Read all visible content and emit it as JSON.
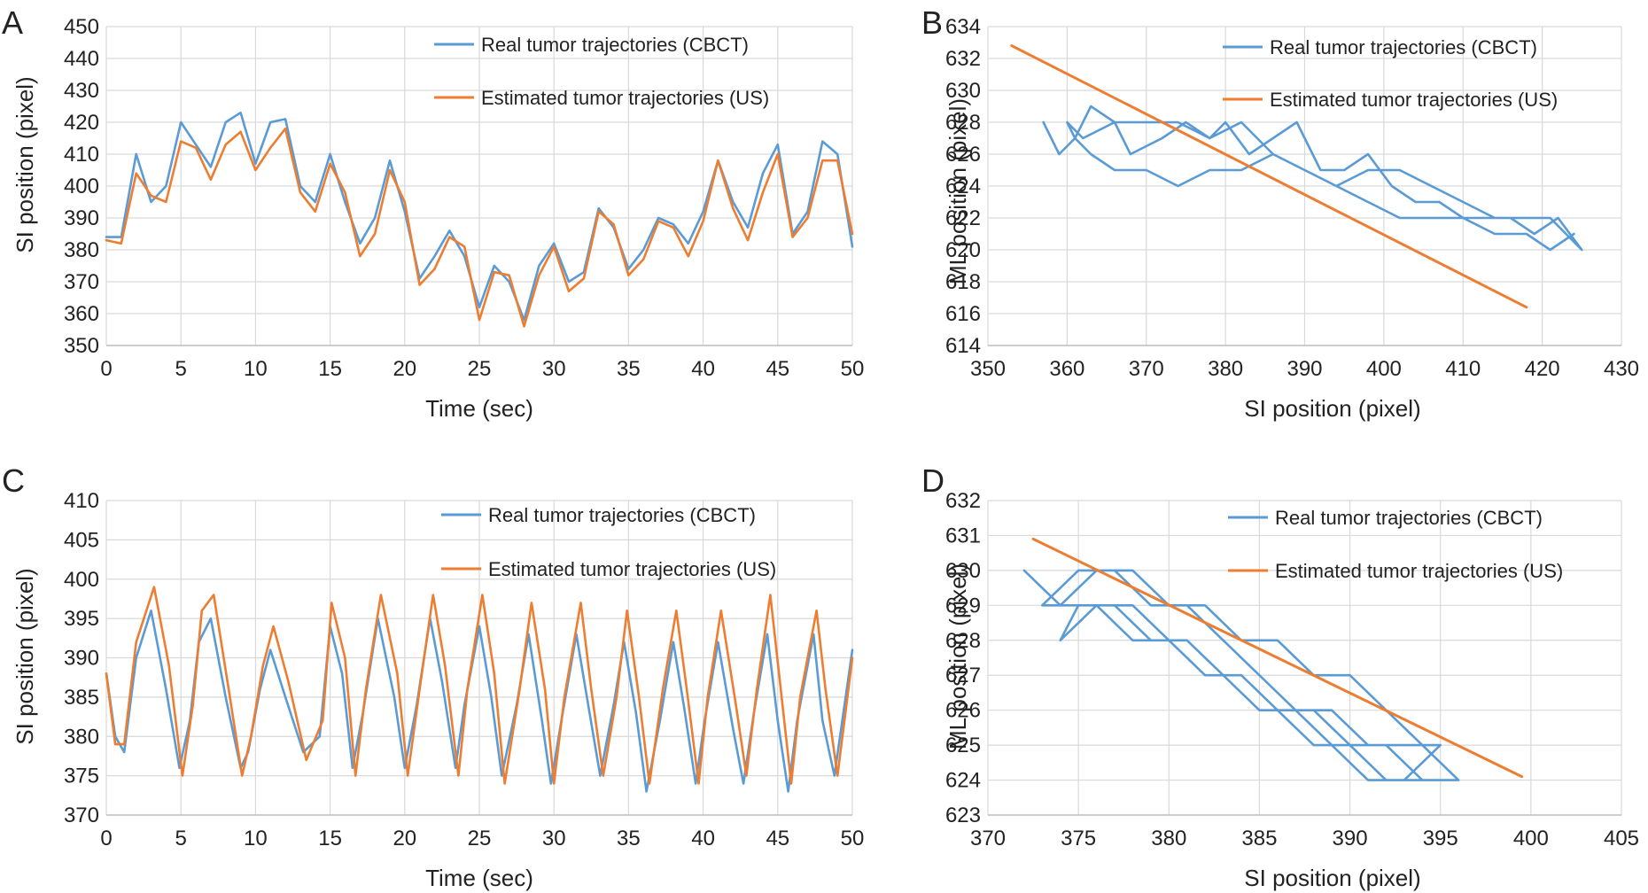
{
  "colors": {
    "real": "#5b9bd5",
    "estimated": "#ed7d31",
    "grid": "#d9d9d9"
  },
  "chart_data": [
    {
      "panel": "A",
      "type": "line",
      "xlabel": "Time (sec)",
      "ylabel": "SI position (pixel)",
      "xlim": [
        0,
        50
      ],
      "ylim": [
        350,
        450
      ],
      "xticks": [
        "0",
        "5",
        "10",
        "15",
        "20",
        "25",
        "30",
        "35",
        "40",
        "45",
        "50"
      ],
      "yticks": [
        "350",
        "360",
        "370",
        "380",
        "390",
        "400",
        "410",
        "420",
        "430",
        "440",
        "450"
      ],
      "grid": true,
      "legend_position": "top-right",
      "series": [
        {
          "name": "Real tumor trajectories (CBCT)",
          "color": "#5b9bd5",
          "x": [
            0,
            1,
            2,
            3,
            4,
            5,
            6,
            7,
            8,
            9,
            10,
            11,
            12,
            13,
            14,
            15,
            16,
            17,
            18,
            19,
            20,
            21,
            22,
            23,
            24,
            25,
            26,
            27,
            28,
            29,
            30,
            31,
            32,
            33,
            34,
            35,
            36,
            37,
            38,
            39,
            40,
            41,
            42,
            43,
            44,
            45,
            46,
            47,
            48,
            49,
            50
          ],
          "y": [
            384,
            384,
            410,
            395,
            400,
            420,
            413,
            406,
            420,
            423,
            407,
            420,
            421,
            400,
            395,
            410,
            395,
            382,
            390,
            408,
            392,
            371,
            378,
            386,
            378,
            362,
            375,
            370,
            358,
            375,
            382,
            370,
            373,
            393,
            387,
            374,
            380,
            390,
            388,
            382,
            392,
            408,
            395,
            387,
            404,
            413,
            385,
            392,
            414,
            410,
            381
          ]
        },
        {
          "name": "Estimated tumor trajectories (US)",
          "color": "#ed7d31",
          "x": [
            0,
            1,
            2,
            3,
            4,
            5,
            6,
            7,
            8,
            9,
            10,
            11,
            12,
            13,
            14,
            15,
            16,
            17,
            18,
            19,
            20,
            21,
            22,
            23,
            24,
            25,
            26,
            27,
            28,
            29,
            30,
            31,
            32,
            33,
            34,
            35,
            36,
            37,
            38,
            39,
            40,
            41,
            42,
            43,
            44,
            45,
            46,
            47,
            48,
            49,
            50
          ],
          "y": [
            383,
            382,
            404,
            397,
            395,
            414,
            412,
            402,
            413,
            417,
            405,
            412,
            418,
            398,
            392,
            407,
            398,
            378,
            385,
            405,
            395,
            369,
            374,
            384,
            381,
            358,
            373,
            372,
            356,
            372,
            381,
            367,
            371,
            392,
            388,
            372,
            377,
            389,
            387,
            378,
            389,
            408,
            393,
            383,
            398,
            410,
            384,
            390,
            408,
            408,
            385
          ]
        }
      ]
    },
    {
      "panel": "B",
      "type": "scatter",
      "xlabel": "SI position (pixel)",
      "ylabel": "ML position (pixel)",
      "xlim": [
        350,
        430
      ],
      "ylim": [
        614,
        634
      ],
      "xticks": [
        "350",
        "360",
        "370",
        "380",
        "390",
        "400",
        "410",
        "420",
        "430"
      ],
      "yticks": [
        "614",
        "616",
        "618",
        "620",
        "622",
        "624",
        "626",
        "628",
        "630",
        "632",
        "634"
      ],
      "grid": true,
      "legend_position": "top-right",
      "series": [
        {
          "name": "Real tumor trajectories (CBCT)",
          "color": "#5b9bd5",
          "x": [
            357,
            359,
            361,
            363,
            366,
            368,
            372,
            375,
            378,
            380,
            383,
            386,
            389,
            392,
            395,
            398,
            401,
            404,
            407,
            410,
            413,
            416,
            419,
            422,
            425,
            423,
            421,
            418,
            414,
            410,
            406,
            402,
            398,
            394,
            390,
            386,
            382,
            378,
            374,
            370,
            366,
            363,
            361,
            360,
            362,
            366,
            370,
            374,
            378,
            382,
            386,
            390,
            394,
            398,
            402,
            406,
            410,
            414,
            418,
            421,
            424
          ],
          "y": [
            628,
            626,
            627,
            629,
            628,
            626,
            627,
            628,
            627,
            628,
            626,
            627,
            628,
            625,
            625,
            626,
            624,
            623,
            623,
            622,
            622,
            622,
            621,
            622,
            620,
            621,
            622,
            622,
            622,
            623,
            624,
            625,
            625,
            624,
            625,
            626,
            625,
            625,
            624,
            625,
            625,
            626,
            627,
            628,
            627,
            628,
            628,
            628,
            627,
            628,
            626,
            625,
            624,
            623,
            622,
            622,
            622,
            621,
            621,
            620,
            621
          ]
        },
        {
          "name": "Estimated tumor trajectories (US)",
          "color": "#ed7d31",
          "mode": "line",
          "x": [
            353,
            418
          ],
          "y": [
            632.8,
            616.4
          ]
        }
      ]
    },
    {
      "panel": "C",
      "type": "line",
      "xlabel": "Time (sec)",
      "ylabel": "SI position (pixel)",
      "xlim": [
        0,
        50
      ],
      "ylim": [
        370,
        410
      ],
      "xticks": [
        "0",
        "5",
        "10",
        "15",
        "20",
        "25",
        "30",
        "35",
        "40",
        "45",
        "50"
      ],
      "yticks": [
        "370",
        "375",
        "380",
        "385",
        "390",
        "395",
        "400",
        "405",
        "410"
      ],
      "grid": true,
      "legend_position": "top-right",
      "series": [
        {
          "name": "Real tumor trajectories (CBCT)",
          "color": "#5b9bd5",
          "x": [
            0,
            0.6,
            1.2,
            2.0,
            3.0,
            4.0,
            4.9,
            5.6,
            6.2,
            7.0,
            8.0,
            9.0,
            9.5,
            10.3,
            11.0,
            12.0,
            13.2,
            14.3,
            15.0,
            15.8,
            16.5,
            17.2,
            18.2,
            19.3,
            20.0,
            20.8,
            21.7,
            22.5,
            23.4,
            24.0,
            25.0,
            25.8,
            26.5,
            27.5,
            28.3,
            29.2,
            29.8,
            30.5,
            31.5,
            32.3,
            33.1,
            34.0,
            34.7,
            35.5,
            36.2,
            37.1,
            38.0,
            38.7,
            39.5,
            40.1,
            41.0,
            42.0,
            42.7,
            43.4,
            44.3,
            45.0,
            45.7,
            46.3,
            47.4,
            48.0,
            48.8,
            49.4,
            50.0
          ],
          "y": [
            388,
            380,
            378,
            390,
            396,
            386,
            376,
            382,
            392,
            395,
            385,
            376,
            378,
            386,
            391,
            385,
            378,
            380,
            394,
            388,
            376,
            383,
            395,
            385,
            376,
            384,
            395,
            387,
            376,
            384,
            394,
            385,
            375,
            384,
            393,
            382,
            374,
            382,
            393,
            384,
            375,
            384,
            392,
            383,
            373,
            382,
            392,
            384,
            374,
            382,
            392,
            381,
            374,
            383,
            393,
            382,
            373,
            382,
            393,
            382,
            375,
            383,
            391
          ]
        },
        {
          "name": "Estimated tumor trajectories (US)",
          "color": "#ed7d31",
          "x": [
            0,
            0.6,
            1.2,
            2.0,
            3.2,
            4.2,
            5.1,
            5.8,
            6.4,
            7.2,
            8.2,
            9.1,
            9.7,
            10.5,
            11.2,
            12.2,
            13.4,
            14.5,
            15.1,
            16.0,
            16.7,
            17.4,
            18.4,
            19.5,
            20.2,
            21.0,
            21.9,
            22.7,
            23.6,
            24.2,
            25.2,
            26.0,
            26.7,
            27.7,
            28.5,
            29.4,
            30.0,
            30.7,
            31.8,
            32.5,
            33.3,
            34.2,
            34.9,
            35.7,
            36.4,
            37.3,
            38.2,
            38.9,
            39.7,
            40.3,
            41.2,
            42.2,
            42.9,
            43.6,
            44.5,
            45.2,
            45.9,
            46.5,
            47.6,
            48.2,
            49.0,
            49.6,
            50.0
          ],
          "y": [
            388,
            379,
            379,
            392,
            399,
            389,
            375,
            384,
            396,
            398,
            386,
            375,
            380,
            389,
            394,
            387,
            377,
            382,
            397,
            390,
            375,
            386,
            398,
            388,
            375,
            386,
            398,
            389,
            375,
            386,
            398,
            388,
            374,
            386,
            397,
            386,
            374,
            385,
            397,
            386,
            375,
            385,
            396,
            385,
            374,
            386,
            396,
            386,
            374,
            385,
            396,
            384,
            375,
            386,
            398,
            386,
            374,
            385,
            396,
            386,
            375,
            384,
            390
          ]
        }
      ]
    },
    {
      "panel": "D",
      "type": "scatter",
      "xlabel": "SI position (pixel)",
      "ylabel": "ML position (pixel)",
      "xlim": [
        370,
        405
      ],
      "ylim": [
        623,
        632
      ],
      "xticks": [
        "370",
        "375",
        "380",
        "385",
        "390",
        "395",
        "400",
        "405"
      ],
      "yticks": [
        "623",
        "624",
        "625",
        "626",
        "627",
        "628",
        "629",
        "630",
        "631",
        "632"
      ],
      "grid": true,
      "legend_position": "top-right",
      "series": [
        {
          "name": "Real tumor trajectories (CBCT)",
          "color": "#5b9bd5",
          "x": [
            372,
            374,
            376,
            378,
            380,
            382,
            384,
            386,
            388,
            390,
            392,
            394,
            396,
            394,
            392,
            390,
            388,
            386,
            384,
            382,
            380,
            378,
            376,
            374,
            373,
            375,
            377,
            379,
            381,
            383,
            385,
            387,
            389,
            391,
            393,
            395,
            393,
            391,
            389,
            387,
            385,
            383,
            381,
            379,
            377,
            375,
            374,
            376,
            378,
            380,
            382,
            384,
            386,
            388,
            390,
            392,
            394,
            396
          ],
          "y": [
            630,
            629,
            630,
            630,
            629,
            629,
            628,
            628,
            627,
            627,
            626,
            625,
            624,
            624,
            625,
            625,
            626,
            626,
            627,
            627,
            628,
            628,
            629,
            629,
            629,
            630,
            630,
            629,
            629,
            628,
            627,
            626,
            626,
            625,
            625,
            625,
            624,
            624,
            625,
            626,
            626,
            627,
            628,
            628,
            629,
            629,
            628,
            629,
            629,
            628,
            627,
            627,
            626,
            625,
            625,
            624,
            624,
            624
          ]
        },
        {
          "name": "Estimated tumor trajectories (US)",
          "color": "#ed7d31",
          "mode": "line",
          "x": [
            372.5,
            399.5
          ],
          "y": [
            630.9,
            624.1
          ]
        }
      ]
    }
  ]
}
